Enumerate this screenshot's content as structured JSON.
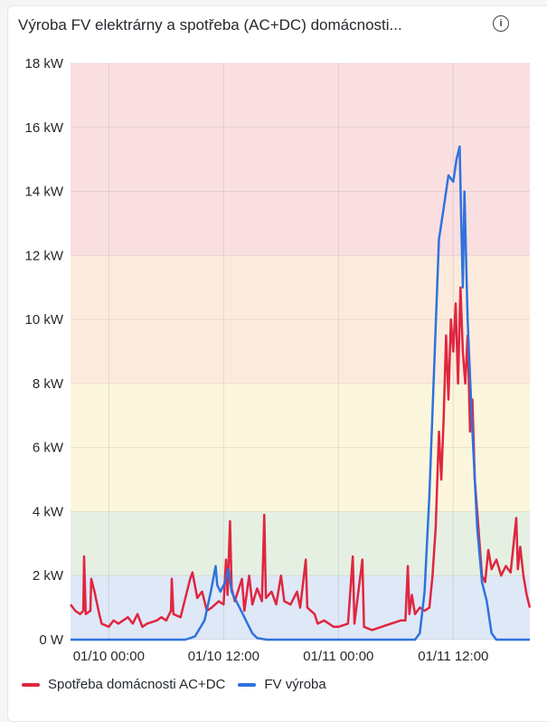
{
  "panel": {
    "title": "Výroba FV elektrárny a spotřeba (AC+DC) domácnosti...",
    "info_icon": "info-circle-icon"
  },
  "chart_data": {
    "type": "line",
    "title": "Výroba FV elektrárny a spotřeba (AC+DC) domácnosti...",
    "xlim": [
      "01/09 20:00",
      "01/11 20:00"
    ],
    "ylim": [
      0,
      18
    ],
    "x_ticks": [
      "01/10 00:00",
      "01/10 12:00",
      "01/11 00:00",
      "01/11 12:00"
    ],
    "y_ticks": [
      0,
      2,
      4,
      6,
      8,
      10,
      12,
      14,
      16,
      18
    ],
    "y_tick_labels": [
      "0 W",
      "2 kW",
      "4 kW",
      "6 kW",
      "8 kW",
      "10 kW",
      "12 kW",
      "14 kW",
      "16 kW",
      "18 kW"
    ],
    "grid": true,
    "legend_position": "bottom-left",
    "threshold_bands": [
      {
        "from": 0,
        "to": 2,
        "color": "#dfe8f7"
      },
      {
        "from": 2,
        "to": 4,
        "color": "#e5f0e3"
      },
      {
        "from": 4,
        "to": 8,
        "color": "#fcf6dd"
      },
      {
        "from": 8,
        "to": 12,
        "color": "#fcebdd"
      },
      {
        "from": 12,
        "to": 18,
        "color": "#fadfe1"
      }
    ],
    "series": [
      {
        "name": "Spotřeba domácnosti AC+DC",
        "color": "#e0263f",
        "points": [
          [
            "01/09 20:00",
            1.1
          ],
          [
            "01/09 20:30",
            0.9
          ],
          [
            "01/09 21:00",
            0.8
          ],
          [
            "01/09 21:20",
            0.9
          ],
          [
            "01/09 21:25",
            2.6
          ],
          [
            "01/09 21:35",
            0.8
          ],
          [
            "01/09 22:05",
            0.9
          ],
          [
            "01/09 22:10",
            1.9
          ],
          [
            "01/09 22:30",
            1.5
          ],
          [
            "01/09 23:00",
            0.8
          ],
          [
            "01/09 23:15",
            0.5
          ],
          [
            "01/10 00:00",
            0.4
          ],
          [
            "01/10 00:30",
            0.6
          ],
          [
            "01/10 01:00",
            0.5
          ],
          [
            "01/10 02:00",
            0.7
          ],
          [
            "01/10 02:30",
            0.5
          ],
          [
            "01/10 03:00",
            0.8
          ],
          [
            "01/10 03:30",
            0.4
          ],
          [
            "01/10 04:00",
            0.5
          ],
          [
            "01/10 05:00",
            0.6
          ],
          [
            "01/10 05:30",
            0.7
          ],
          [
            "01/10 06:00",
            0.6
          ],
          [
            "01/10 06:30",
            0.9
          ],
          [
            "01/10 06:35",
            1.9
          ],
          [
            "01/10 06:45",
            0.8
          ],
          [
            "01/10 07:30",
            0.7
          ],
          [
            "01/10 08:00",
            1.3
          ],
          [
            "01/10 08:30",
            1.9
          ],
          [
            "01/10 08:45",
            2.1
          ],
          [
            "01/10 09:15",
            1.3
          ],
          [
            "01/10 09:45",
            1.5
          ],
          [
            "01/10 10:15",
            0.9
          ],
          [
            "01/10 10:45",
            1.0
          ],
          [
            "01/10 11:30",
            1.2
          ],
          [
            "01/10 12:00",
            1.1
          ],
          [
            "01/10 12:15",
            2.5
          ],
          [
            "01/10 12:25",
            1.4
          ],
          [
            "01/10 12:40",
            3.7
          ],
          [
            "01/10 12:50",
            1.6
          ],
          [
            "01/10 13:10",
            1.2
          ],
          [
            "01/10 13:55",
            1.9
          ],
          [
            "01/10 14:10",
            0.9
          ],
          [
            "01/10 14:40",
            2.0
          ],
          [
            "01/10 15:00",
            1.1
          ],
          [
            "01/10 15:30",
            1.6
          ],
          [
            "01/10 16:00",
            1.2
          ],
          [
            "01/10 16:15",
            3.9
          ],
          [
            "01/10 16:25",
            1.3
          ],
          [
            "01/10 17:00",
            1.5
          ],
          [
            "01/10 17:30",
            1.1
          ],
          [
            "01/10 18:00",
            2.0
          ],
          [
            "01/10 18:20",
            1.2
          ],
          [
            "01/10 19:00",
            1.1
          ],
          [
            "01/10 19:40",
            1.5
          ],
          [
            "01/10 20:00",
            1.0
          ],
          [
            "01/10 20:35",
            2.5
          ],
          [
            "01/10 20:45",
            1.0
          ],
          [
            "01/10 21:30",
            0.8
          ],
          [
            "01/10 21:50",
            0.5
          ],
          [
            "01/10 22:30",
            0.6
          ],
          [
            "01/10 23:00",
            0.5
          ],
          [
            "01/10 23:30",
            0.4
          ],
          [
            "01/11 00:00",
            0.4
          ],
          [
            "01/11 01:00",
            0.5
          ],
          [
            "01/11 01:30",
            2.6
          ],
          [
            "01/11 01:40",
            0.5
          ],
          [
            "01/11 02:30",
            2.5
          ],
          [
            "01/11 02:40",
            0.4
          ],
          [
            "01/11 03:30",
            0.3
          ],
          [
            "01/11 04:30",
            0.4
          ],
          [
            "01/11 05:30",
            0.5
          ],
          [
            "01/11 06:30",
            0.6
          ],
          [
            "01/11 07:00",
            0.6
          ],
          [
            "01/11 07:15",
            2.3
          ],
          [
            "01/11 07:25",
            0.8
          ],
          [
            "01/11 07:40",
            1.4
          ],
          [
            "01/11 08:00",
            0.8
          ],
          [
            "01/11 08:30",
            1.0
          ],
          [
            "01/11 09:00",
            0.9
          ],
          [
            "01/11 09:30",
            1.0
          ],
          [
            "01/11 09:50",
            2.0
          ],
          [
            "01/11 10:10",
            3.5
          ],
          [
            "01/11 10:30",
            6.5
          ],
          [
            "01/11 10:45",
            5.0
          ],
          [
            "01/11 11:00",
            7.0
          ],
          [
            "01/11 11:15",
            9.5
          ],
          [
            "01/11 11:30",
            7.5
          ],
          [
            "01/11 11:45",
            10.0
          ],
          [
            "01/11 12:00",
            9.0
          ],
          [
            "01/11 12:15",
            10.5
          ],
          [
            "01/11 12:30",
            8.0
          ],
          [
            "01/11 12:45",
            11.0
          ],
          [
            "01/11 13:00",
            9.0
          ],
          [
            "01/11 13:15",
            8.0
          ],
          [
            "01/11 13:30",
            9.5
          ],
          [
            "01/11 13:45",
            6.5
          ],
          [
            "01/11 14:00",
            7.5
          ],
          [
            "01/11 14:15",
            5.0
          ],
          [
            "01/11 14:30",
            4.0
          ],
          [
            "01/11 15:00",
            2.0
          ],
          [
            "01/11 15:20",
            1.8
          ],
          [
            "01/11 15:40",
            2.8
          ],
          [
            "01/11 16:00",
            2.2
          ],
          [
            "01/11 16:30",
            2.5
          ],
          [
            "01/11 17:00",
            2.0
          ],
          [
            "01/11 17:30",
            2.3
          ],
          [
            "01/11 18:00",
            2.1
          ],
          [
            "01/11 18:35",
            3.8
          ],
          [
            "01/11 18:45",
            2.2
          ],
          [
            "01/11 19:00",
            2.9
          ],
          [
            "01/11 19:20",
            2.0
          ],
          [
            "01/11 19:40",
            1.4
          ],
          [
            "01/11 20:00",
            1.0
          ]
        ]
      },
      {
        "name": "FV výroba",
        "color": "#2f72dc",
        "points": [
          [
            "01/09 20:00",
            0
          ],
          [
            "01/10 08:00",
            0
          ],
          [
            "01/10 09:00",
            0.1
          ],
          [
            "01/10 10:00",
            0.6
          ],
          [
            "01/10 10:40",
            1.5
          ],
          [
            "01/10 11:10",
            2.3
          ],
          [
            "01/10 11:20",
            1.7
          ],
          [
            "01/10 11:40",
            1.5
          ],
          [
            "01/10 12:10",
            1.8
          ],
          [
            "01/10 12:30",
            2.2
          ],
          [
            "01/10 12:50",
            1.5
          ],
          [
            "01/10 13:20",
            1.2
          ],
          [
            "01/10 13:50",
            0.9
          ],
          [
            "01/10 14:30",
            0.5
          ],
          [
            "01/10 15:00",
            0.2
          ],
          [
            "01/10 15:30",
            0.05
          ],
          [
            "01/10 16:30",
            0
          ],
          [
            "01/11 08:00",
            0
          ],
          [
            "01/11 08:30",
            0.2
          ],
          [
            "01/11 09:00",
            1.5
          ],
          [
            "01/11 09:30",
            4.5
          ],
          [
            "01/11 10:00",
            8.5
          ],
          [
            "01/11 10:30",
            12.5
          ],
          [
            "01/11 11:00",
            13.5
          ],
          [
            "01/11 11:30",
            14.5
          ],
          [
            "01/11 12:00",
            14.3
          ],
          [
            "01/11 12:20",
            15.0
          ],
          [
            "01/11 12:40",
            15.4
          ],
          [
            "01/11 12:50",
            13.0
          ],
          [
            "01/11 13:00",
            11.0
          ],
          [
            "01/11 13:10",
            14.0
          ],
          [
            "01/11 13:30",
            10.0
          ],
          [
            "01/11 14:00",
            6.5
          ],
          [
            "01/11 14:30",
            3.5
          ],
          [
            "01/11 15:00",
            1.8
          ],
          [
            "01/11 15:30",
            1.2
          ],
          [
            "01/11 16:00",
            0.2
          ],
          [
            "01/11 16:30",
            0
          ],
          [
            "01/11 20:00",
            0
          ]
        ]
      }
    ]
  }
}
